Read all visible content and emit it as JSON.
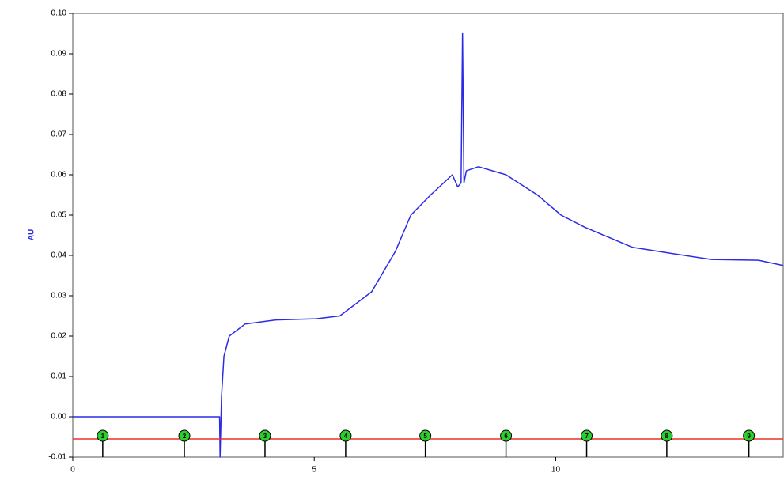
{
  "chart_data": {
    "type": "line",
    "y_label": "AU",
    "x": [
      0,
      3.0,
      3.04,
      3.05,
      3.08,
      3.13,
      3.24,
      3.57,
      4.2,
      5.04,
      5.53,
      6.19,
      6.68,
      7.0,
      7.41,
      7.86,
      7.97,
      8.04,
      8.07,
      8.1,
      8.15,
      8.4,
      8.97,
      9.62,
      10.11,
      10.6,
      11.59,
      12.4,
      13.22,
      14.2,
      14.71
    ],
    "values": [
      0,
      0,
      0,
      -0.01,
      0.005,
      0.015,
      0.02,
      0.023,
      0.024,
      0.0243,
      0.025,
      0.031,
      0.041,
      0.05,
      0.055,
      0.06,
      0.057,
      0.058,
      0.095,
      0.058,
      0.061,
      0.062,
      0.06,
      0.055,
      0.05,
      0.047,
      0.042,
      0.0405,
      0.039,
      0.0388,
      0.0375
    ],
    "color": "#2b2be6",
    "xlim": [
      0,
      14.71
    ],
    "ylim": [
      -0.01,
      0.1
    ],
    "xticks": [
      0,
      5,
      10
    ],
    "yticks": [
      {
        "value": 0.1,
        "label": "0.10"
      },
      {
        "value": 0.09,
        "label": "0.09"
      },
      {
        "value": 0.08,
        "label": "0.08"
      },
      {
        "value": 0.07,
        "label": "0.07"
      },
      {
        "value": 0.06,
        "label": "0.06"
      },
      {
        "value": 0.05,
        "label": "0.05"
      },
      {
        "value": 0.04,
        "label": "0.04"
      },
      {
        "value": 0.03,
        "label": "0.03"
      },
      {
        "value": 0.02,
        "label": "0.02"
      },
      {
        "value": 0.01,
        "label": "0.01"
      },
      {
        "value": 0,
        "label": "0.00"
      },
      {
        "value": -0.01,
        "label": "-0.01"
      }
    ],
    "threshold": -0.0055,
    "threshold_color": "#e8302a",
    "fractions": {
      "labels": [
        "1",
        "2",
        "3",
        "4",
        "5",
        "6",
        "7",
        "8",
        "9"
      ],
      "x": [
        0.62,
        2.31,
        3.98,
        5.65,
        7.3,
        8.97,
        10.64,
        12.3,
        14.0
      ],
      "color": "#2ecc2e"
    }
  }
}
